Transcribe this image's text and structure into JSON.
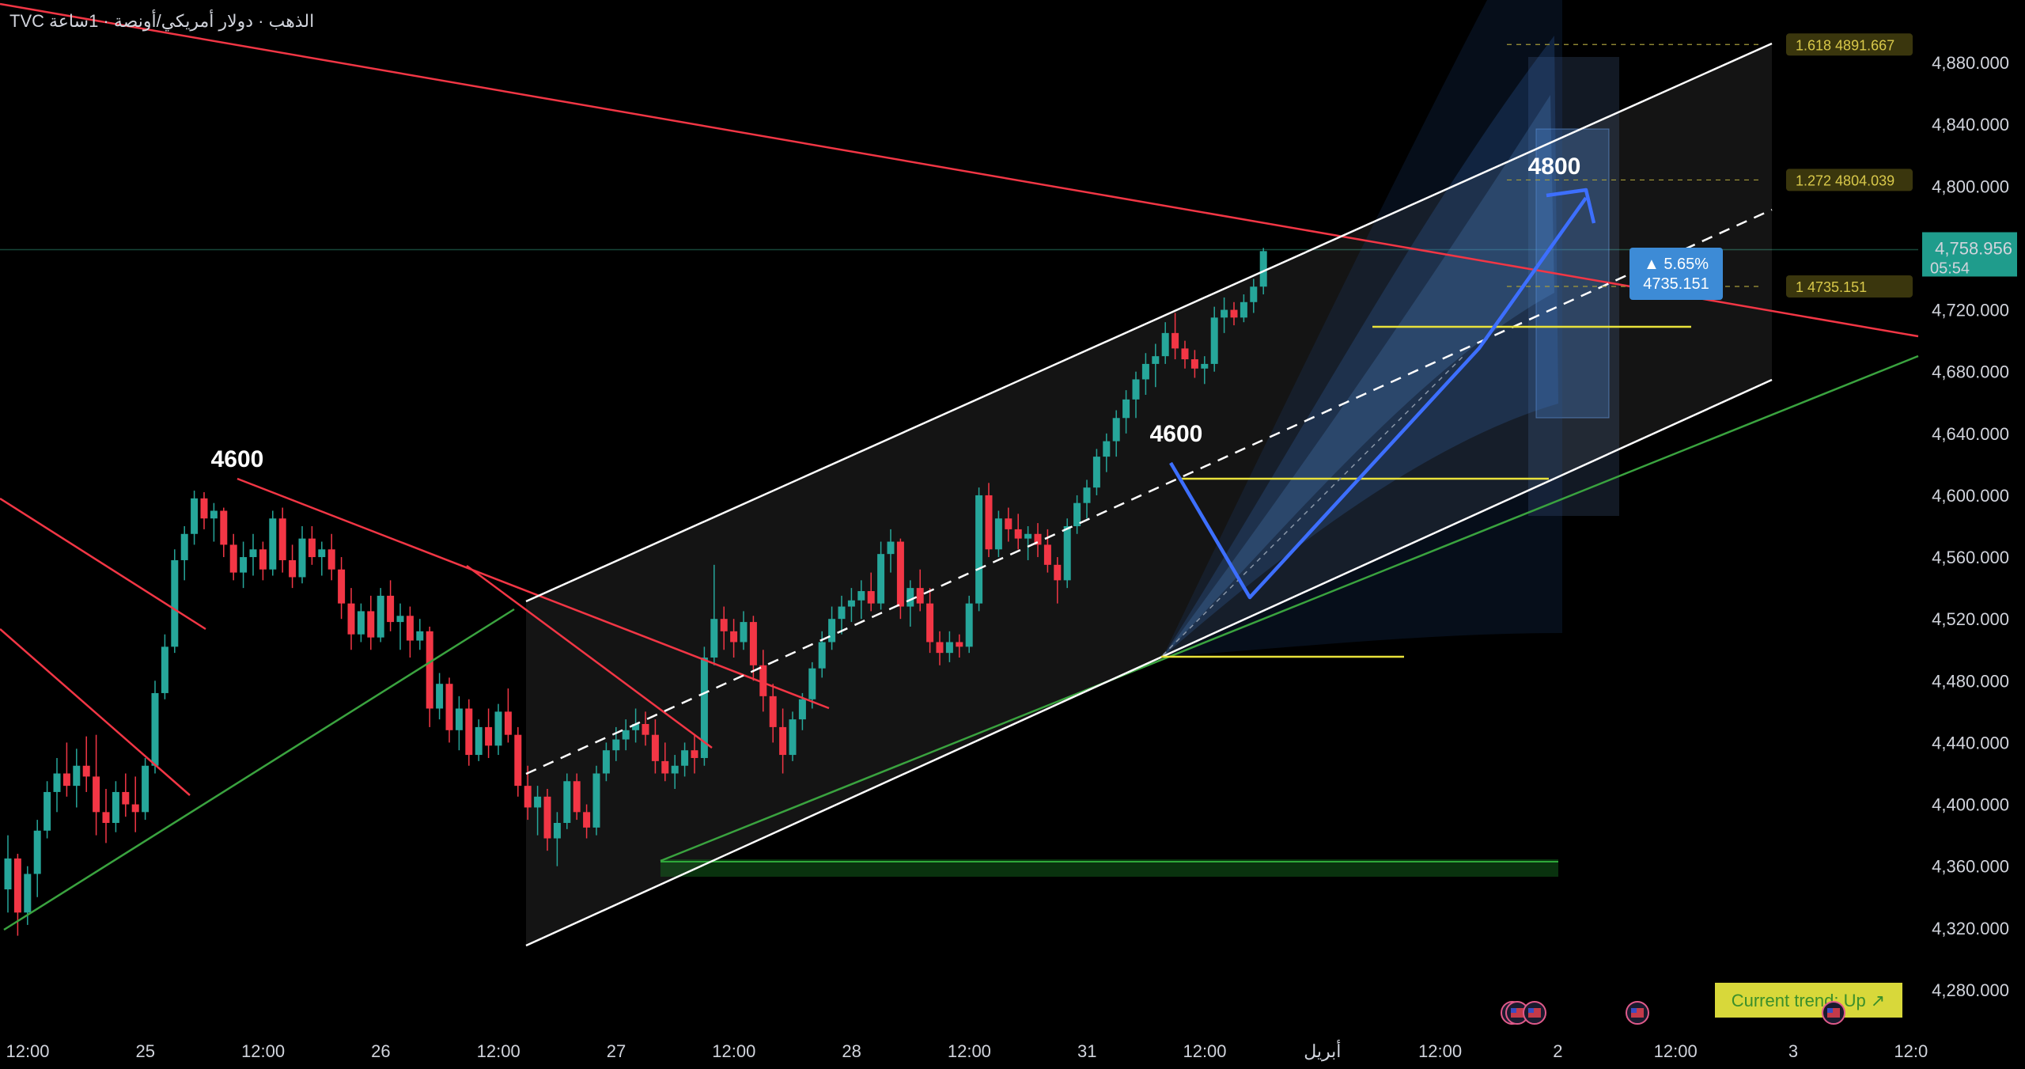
{
  "header": {
    "symbol": "TVC",
    "description": "الذهب · دولار أمريكي/أونصة · 1ساعة"
  },
  "chart_data": {
    "type": "candlestick",
    "y_axis": {
      "min": 4260,
      "max": 4900,
      "ticks": [
        4280,
        4320,
        4360,
        4400,
        4440,
        4480,
        4520,
        4560,
        4600,
        4640,
        4680,
        4720,
        4760,
        4800,
        4840,
        4880
      ],
      "tick_labels": [
        "4,280.000",
        "4,320.000",
        "4,360.000",
        "4,400.000",
        "4,440.000",
        "4,480.000",
        "4,520.000",
        "4,560.000",
        "4,600.000",
        "4,640.000",
        "4,680.000",
        "4,720.000",
        "4,760.000",
        "4,800.000",
        "4,840.000",
        "4,880.000"
      ]
    },
    "x_axis": {
      "labels": [
        {
          "text": "12:00",
          "bar": 0
        },
        {
          "text": "25",
          "bar": 12
        },
        {
          "text": "12:00",
          "bar": 24
        },
        {
          "text": "26",
          "bar": 36
        },
        {
          "text": "12:00",
          "bar": 48
        },
        {
          "text": "27",
          "bar": 60
        },
        {
          "text": "12:00",
          "bar": 72
        },
        {
          "text": "28",
          "bar": 84
        },
        {
          "text": "12:00",
          "bar": 96
        },
        {
          "text": "31",
          "bar": 108
        },
        {
          "text": "12:00",
          "bar": 120
        },
        {
          "text": "أبريل",
          "bar": 132
        },
        {
          "text": "12:00",
          "bar": 144
        },
        {
          "text": "2",
          "bar": 156
        },
        {
          "text": "12:00",
          "bar": 168
        },
        {
          "text": "3",
          "bar": 180
        },
        {
          "text": "12:0",
          "bar": 192
        }
      ]
    },
    "last_price": {
      "label": "4,758.956",
      "countdown": "05:54",
      "value": 4758.956
    },
    "candles": [
      [
        4345,
        4380,
        4330,
        4365
      ],
      [
        4365,
        4368,
        4315,
        4330
      ],
      [
        4330,
        4360,
        4322,
        4355
      ],
      [
        4355,
        4390,
        4340,
        4383
      ],
      [
        4383,
        4415,
        4378,
        4408
      ],
      [
        4408,
        4430,
        4395,
        4420
      ],
      [
        4420,
        4440,
        4405,
        4412
      ],
      [
        4412,
        4436,
        4398,
        4425
      ],
      [
        4425,
        4444,
        4408,
        4418
      ],
      [
        4418,
        4445,
        4380,
        4395
      ],
      [
        4395,
        4410,
        4375,
        4388
      ],
      [
        4388,
        4415,
        4382,
        4408
      ],
      [
        4408,
        4420,
        4392,
        4400
      ],
      [
        4400,
        4418,
        4382,
        4395
      ],
      [
        4395,
        4430,
        4390,
        4425
      ],
      [
        4425,
        4480,
        4420,
        4472
      ],
      [
        4472,
        4510,
        4468,
        4502
      ],
      [
        4502,
        4565,
        4498,
        4558
      ],
      [
        4558,
        4580,
        4545,
        4575
      ],
      [
        4575,
        4603,
        4568,
        4598
      ],
      [
        4598,
        4602,
        4578,
        4585
      ],
      [
        4585,
        4595,
        4570,
        4590
      ],
      [
        4590,
        4592,
        4560,
        4568
      ],
      [
        4568,
        4575,
        4545,
        4550
      ],
      [
        4550,
        4570,
        4540,
        4560
      ],
      [
        4560,
        4575,
        4548,
        4565
      ],
      [
        4565,
        4570,
        4545,
        4552
      ],
      [
        4552,
        4590,
        4548,
        4585
      ],
      [
        4585,
        4592,
        4550,
        4558
      ],
      [
        4558,
        4568,
        4540,
        4547
      ],
      [
        4547,
        4580,
        4543,
        4572
      ],
      [
        4572,
        4580,
        4555,
        4560
      ],
      [
        4560,
        4570,
        4548,
        4565
      ],
      [
        4565,
        4575,
        4545,
        4552
      ],
      [
        4552,
        4560,
        4520,
        4530
      ],
      [
        4530,
        4540,
        4500,
        4510
      ],
      [
        4510,
        4530,
        4505,
        4525
      ],
      [
        4525,
        4535,
        4500,
        4508
      ],
      [
        4508,
        4540,
        4505,
        4535
      ],
      [
        4535,
        4545,
        4512,
        4518
      ],
      [
        4518,
        4530,
        4500,
        4522
      ],
      [
        4522,
        4528,
        4495,
        4506
      ],
      [
        4506,
        4520,
        4500,
        4512
      ],
      [
        4512,
        4515,
        4450,
        4462
      ],
      [
        4462,
        4485,
        4455,
        4478
      ],
      [
        4478,
        4482,
        4440,
        4448
      ],
      [
        4448,
        4470,
        4435,
        4462
      ],
      [
        4462,
        4468,
        4425,
        4432
      ],
      [
        4432,
        4455,
        4428,
        4450
      ],
      [
        4450,
        4462,
        4430,
        4438
      ],
      [
        4438,
        4465,
        4432,
        4460
      ],
      [
        4460,
        4475,
        4440,
        4445
      ],
      [
        4445,
        4450,
        4405,
        4412
      ],
      [
        4412,
        4425,
        4390,
        4398
      ],
      [
        4398,
        4412,
        4380,
        4405
      ],
      [
        4405,
        4410,
        4370,
        4378
      ],
      [
        4378,
        4395,
        4360,
        4388
      ],
      [
        4388,
        4420,
        4384,
        4415
      ],
      [
        4415,
        4420,
        4390,
        4395
      ],
      [
        4395,
        4400,
        4378,
        4385
      ],
      [
        4385,
        4425,
        4380,
        4420
      ],
      [
        4420,
        4440,
        4415,
        4435
      ],
      [
        4435,
        4450,
        4428,
        4442
      ],
      [
        4442,
        4455,
        4435,
        4448
      ],
      [
        4448,
        4462,
        4440,
        4452
      ],
      [
        4452,
        4460,
        4438,
        4445
      ],
      [
        4445,
        4455,
        4420,
        4428
      ],
      [
        4428,
        4440,
        4415,
        4420
      ],
      [
        4420,
        4432,
        4410,
        4425
      ],
      [
        4425,
        4440,
        4418,
        4435
      ],
      [
        4435,
        4445,
        4420,
        4430
      ],
      [
        4430,
        4502,
        4425,
        4495
      ],
      [
        4495,
        4555,
        4490,
        4520
      ],
      [
        4520,
        4528,
        4500,
        4512
      ],
      [
        4512,
        4520,
        4495,
        4505
      ],
      [
        4505,
        4525,
        4500,
        4518
      ],
      [
        4518,
        4522,
        4480,
        4490
      ],
      [
        4490,
        4500,
        4460,
        4470
      ],
      [
        4470,
        4478,
        4440,
        4450
      ],
      [
        4450,
        4462,
        4420,
        4432
      ],
      [
        4432,
        4460,
        4428,
        4455
      ],
      [
        4455,
        4472,
        4448,
        4468
      ],
      [
        4468,
        4492,
        4462,
        4488
      ],
      [
        4488,
        4512,
        4482,
        4505
      ],
      [
        4505,
        4528,
        4500,
        4520
      ],
      [
        4520,
        4535,
        4510,
        4528
      ],
      [
        4528,
        4540,
        4518,
        4532
      ],
      [
        4532,
        4545,
        4520,
        4538
      ],
      [
        4538,
        4550,
        4525,
        4530
      ],
      [
        4530,
        4570,
        4526,
        4562
      ],
      [
        4562,
        4578,
        4550,
        4570
      ],
      [
        4570,
        4572,
        4520,
        4528
      ],
      [
        4528,
        4545,
        4515,
        4540
      ],
      [
        4540,
        4552,
        4525,
        4530
      ],
      [
        4530,
        4540,
        4498,
        4505
      ],
      [
        4505,
        4512,
        4490,
        4498
      ],
      [
        4498,
        4512,
        4492,
        4505
      ],
      [
        4505,
        4510,
        4495,
        4502
      ],
      [
        4502,
        4535,
        4498,
        4530
      ],
      [
        4530,
        4605,
        4525,
        4600
      ],
      [
        4600,
        4608,
        4560,
        4565
      ],
      [
        4565,
        4590,
        4560,
        4585
      ],
      [
        4585,
        4592,
        4570,
        4578
      ],
      [
        4578,
        4588,
        4565,
        4572
      ],
      [
        4572,
        4580,
        4558,
        4575
      ],
      [
        4575,
        4582,
        4560,
        4568
      ],
      [
        4568,
        4578,
        4550,
        4555
      ],
      [
        4555,
        4560,
        4530,
        4545
      ],
      [
        4545,
        4585,
        4540,
        4580
      ],
      [
        4580,
        4600,
        4575,
        4595
      ],
      [
        4595,
        4610,
        4585,
        4605
      ],
      [
        4605,
        4630,
        4600,
        4625
      ],
      [
        4625,
        4640,
        4615,
        4635
      ],
      [
        4635,
        4655,
        4625,
        4650
      ],
      [
        4650,
        4668,
        4640,
        4662
      ],
      [
        4662,
        4680,
        4650,
        4675
      ],
      [
        4675,
        4692,
        4665,
        4685
      ],
      [
        4685,
        4698,
        4670,
        4690
      ],
      [
        4690,
        4712,
        4685,
        4705
      ],
      [
        4705,
        4718,
        4688,
        4695
      ],
      [
        4695,
        4700,
        4682,
        4688
      ],
      [
        4688,
        4694,
        4676,
        4682
      ],
      [
        4682,
        4690,
        4672,
        4685
      ],
      [
        4685,
        4722,
        4680,
        4715
      ],
      [
        4715,
        4728,
        4705,
        4720
      ],
      [
        4720,
        4725,
        4710,
        4715
      ],
      [
        4715,
        4730,
        4712,
        4725
      ],
      [
        4725,
        4740,
        4718,
        4735
      ],
      [
        4735,
        4760,
        4730,
        4758
      ]
    ],
    "annotations": {
      "labels": [
        "4600",
        "4600",
        "4800"
      ],
      "fib_levels": [
        {
          "label": "1.618  4891.667",
          "value": 4891.667
        },
        {
          "label": "1.272  4804.039",
          "value": 4804.039
        },
        {
          "label": "1  4735.151",
          "value": 4735.151
        }
      ],
      "measure_tooltip": {
        "pct": "▲ 5.65%",
        "price": "4735.151"
      },
      "trend_badge": "Current trend: Up ↗"
    }
  }
}
